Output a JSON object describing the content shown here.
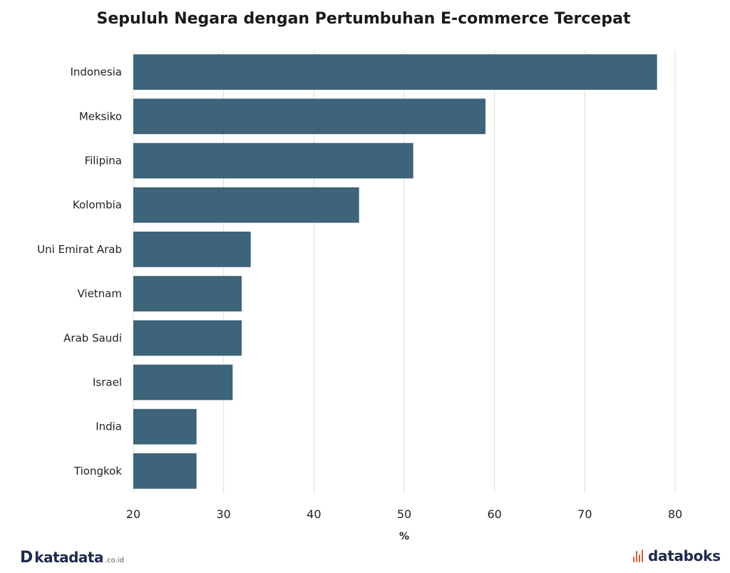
{
  "chart_data": {
    "type": "bar",
    "orientation": "horizontal",
    "title": "Sepuluh Negara dengan Pertumbuhan E-commerce Tercepat",
    "xlabel": "%",
    "ylabel": "",
    "categories": [
      "Indonesia",
      "Meksiko",
      "Filipina",
      "Kolombia",
      "Uni Emirat Arab",
      "Vietnam",
      "Arab Saudi",
      "Israel",
      "India",
      "Tiongkok"
    ],
    "values": [
      78,
      59,
      51,
      45,
      33,
      32,
      32,
      31,
      27,
      27
    ],
    "xlim": [
      20,
      80
    ],
    "xticks": [
      20,
      30,
      40,
      50,
      60,
      70,
      80
    ],
    "grid": "vertical",
    "bar_color": "#3d6478"
  },
  "branding": {
    "left_logo": "katadata",
    "left_logo_suffix": ".co.id",
    "right_logo": "databoks",
    "right_icon_color": "#e05a3a"
  }
}
